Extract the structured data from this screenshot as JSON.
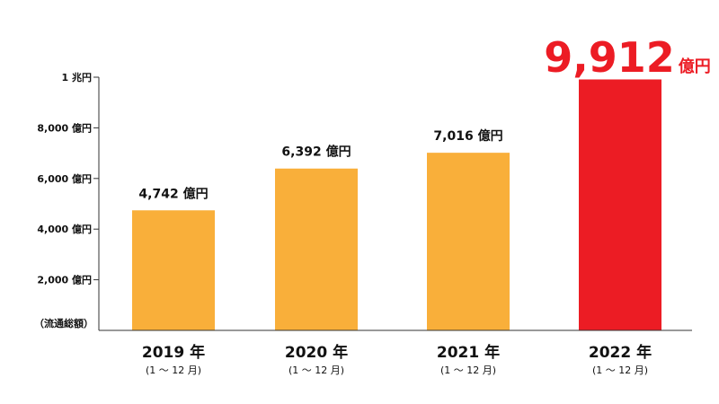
{
  "chart_data": {
    "type": "bar",
    "categories": [
      "2019 年",
      "2020 年",
      "2021 年",
      "2022 年"
    ],
    "sublabels": [
      "(1 ～ 12 月)",
      "(1 ～ 12 月)",
      "(1 ～ 12 月)",
      "(1 ～ 12 月)"
    ],
    "values": [
      4742,
      6392,
      7016,
      9912
    ],
    "value_labels": [
      "4,742 億円",
      "6,392 億円",
      "7,016 億円",
      "9,912"
    ],
    "highlight_unit": "億円",
    "y_ticks": [
      {
        "value": 2000,
        "label": "2,000 億円"
      },
      {
        "value": 4000,
        "label": "4,000 億円"
      },
      {
        "value": 6000,
        "label": "6,000 億円"
      },
      {
        "value": 8000,
        "label": "8,000 億円"
      },
      {
        "value": 10000,
        "label": "1 兆円"
      }
    ],
    "ylabel": "（流通総額）",
    "ylim": [
      0,
      10000
    ],
    "colors": [
      "#F9AF3A",
      "#F9AF3A",
      "#F9AF3A",
      "#EC1C24"
    ],
    "highlight_color": "#EC1C24",
    "grid": false
  }
}
